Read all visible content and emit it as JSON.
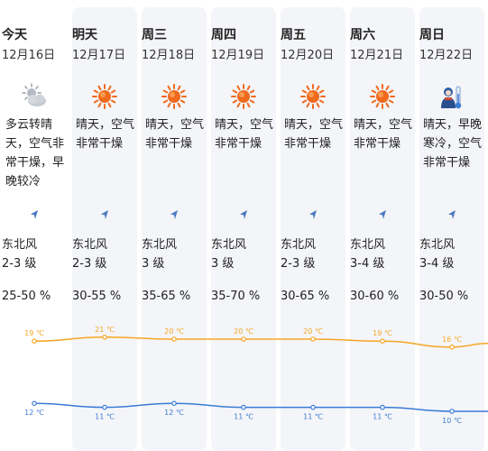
{
  "days": [
    {
      "name": "今天",
      "date": "12月16日",
      "icon": "cloudy-sun-icon",
      "desc": "多云转晴天，空气非常干燥，早晚较冷",
      "wind_dir": "东北风",
      "wind_level": "2-3 级",
      "humidity": "25-50 %",
      "high": "19 ℃",
      "low": "12 ℃",
      "high_val": 19,
      "low_val": 12
    },
    {
      "name": "明天",
      "date": "12月17日",
      "icon": "sun-icon",
      "desc": "晴天，空气非常干燥",
      "wind_dir": "东北风",
      "wind_level": "2-3 级",
      "humidity": "30-55 %",
      "high": "21 ℃",
      "low": "11 ℃",
      "high_val": 21,
      "low_val": 11
    },
    {
      "name": "周三",
      "date": "12月18日",
      "icon": "sun-icon",
      "desc": "晴天，空气非常干燥",
      "wind_dir": "东北风",
      "wind_level": "3 级",
      "humidity": "35-65 %",
      "high": "20 ℃",
      "low": "12 ℃",
      "high_val": 20,
      "low_val": 12
    },
    {
      "name": "周四",
      "date": "12月19日",
      "icon": "sun-icon",
      "desc": "晴天，空气非常干燥",
      "wind_dir": "东北风",
      "wind_level": "3 级",
      "humidity": "35-70 %",
      "high": "20 ℃",
      "low": "11 ℃",
      "high_val": 20,
      "low_val": 11
    },
    {
      "name": "周五",
      "date": "12月20日",
      "icon": "sun-icon",
      "desc": "晴天，空气非常干燥",
      "wind_dir": "东北风",
      "wind_level": "2-3 级",
      "humidity": "30-65 %",
      "high": "20 ℃",
      "low": "11 ℃",
      "high_val": 20,
      "low_val": 11
    },
    {
      "name": "周六",
      "date": "12月21日",
      "icon": "sun-icon",
      "desc": "晴天，空气非常干燥",
      "wind_dir": "东北风",
      "wind_level": "3-4 级",
      "humidity": "30-60 %",
      "high": "19 ℃",
      "low": "11 ℃",
      "high_val": 19,
      "low_val": 11
    },
    {
      "name": "周日",
      "date": "12月22日",
      "icon": "cold-person-icon",
      "desc": "晴天，早晚寒冷，空气非常干燥",
      "wind_dir": "东北风",
      "wind_level": "3-4 级",
      "humidity": "30-50 %",
      "high": "16 ℃",
      "low": "10 ℃",
      "high_val": 16,
      "low_val": 10
    }
  ],
  "colors": {
    "high_line": "#f5a623",
    "low_line": "#3a7bd5",
    "sun": "#f06a1e",
    "column_bg": "#f4f5f8",
    "wind_arrow": "#4a78c2"
  }
}
